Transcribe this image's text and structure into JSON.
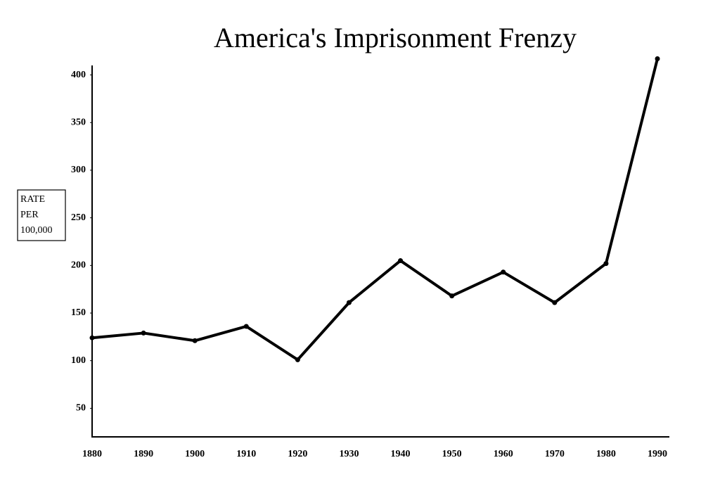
{
  "chart_data": {
    "type": "line",
    "title": "America's Imprisonment Frenzy",
    "y_label": [
      "RATE",
      "PER",
      "100,000"
    ],
    "categories": [
      "1880",
      "1890",
      "1900",
      "1910",
      "1920",
      "1930",
      "1940",
      "1950",
      "1960",
      "1970",
      "1980",
      "1990"
    ],
    "values": [
      124,
      129,
      121,
      136,
      101,
      161,
      205,
      168,
      193,
      161,
      202,
      417
    ],
    "color": "#000000",
    "ylim": [
      20,
      410
    ],
    "yticks": [
      50,
      100,
      150,
      200,
      250,
      300,
      350,
      400
    ],
    "grid": false
  }
}
